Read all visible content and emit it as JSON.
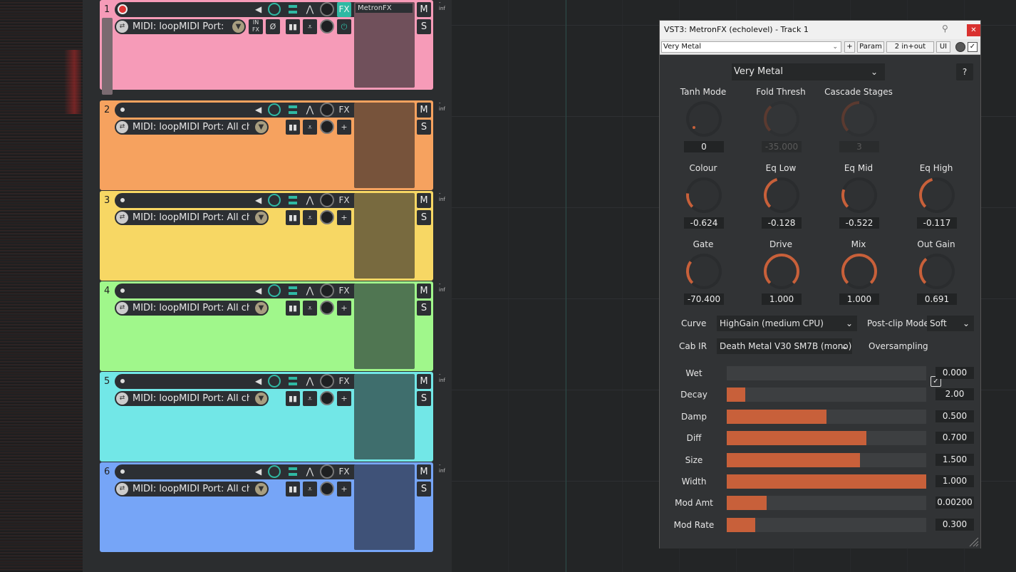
{
  "tracks": [
    {
      "num": "1",
      "input": "MIDI: loopMIDI Port: Al",
      "plugin": "MetronFX",
      "color": "#f69bb8",
      "fx_color": "#70505b",
      "armed": true,
      "fx_active": true
    },
    {
      "num": "2",
      "input": "MIDI: loopMIDI Port: All channe",
      "plugin": "",
      "color": "#f6a25f",
      "fx_color": "#77533b",
      "armed": false,
      "fx_active": false
    },
    {
      "num": "3",
      "input": "MIDI: loopMIDI Port: All channe",
      "plugin": "",
      "color": "#f7d764",
      "fx_color": "#786a3f",
      "armed": false,
      "fx_active": false
    },
    {
      "num": "4",
      "input": "MIDI: loopMIDI Port: All channe",
      "plugin": "",
      "color": "#a0f78b",
      "fx_color": "#507652",
      "armed": false,
      "fx_active": false
    },
    {
      "num": "5",
      "input": "MIDI: loopMIDI Port: All channe",
      "plugin": "",
      "color": "#72e7e7",
      "fx_color": "#3f6e6d",
      "armed": false,
      "fx_active": false
    },
    {
      "num": "6",
      "input": "MIDI: loopMIDI Port: All channe",
      "plugin": "",
      "color": "#76a5f7",
      "fx_color": "#3f5278",
      "armed": false,
      "fx_active": false
    }
  ],
  "track_labels": {
    "fx": "FX",
    "mute": "M",
    "solo": "S",
    "in_fx": "IN\nFX",
    "phase": "Ø",
    "add": "+",
    "power": "⏻",
    "inf": "-inf"
  },
  "plugin": {
    "title": "VST3: MetronFX (echolevel) - Track 1",
    "toolbar_preset": "Very Metal",
    "toolbar_plus": "+",
    "toolbar_param": "Param",
    "toolbar_io": "2 in+out",
    "toolbar_ui": "UI",
    "preset": "Very Metal",
    "help": "?",
    "knobs": [
      {
        "label": "Tanh Mode",
        "value": "0",
        "norm": 0.0,
        "enabled": true
      },
      {
        "label": "Fold Thresh",
        "value": "-35.000",
        "norm": 0.35,
        "enabled": false
      },
      {
        "label": "Cascade Stages",
        "value": "3",
        "norm": 0.5,
        "enabled": false
      },
      {
        "label": "Colour",
        "value": "-0.624",
        "norm": 0.19,
        "enabled": true
      },
      {
        "label": "Eq Low",
        "value": "-0.128",
        "norm": 0.44,
        "enabled": true
      },
      {
        "label": "Eq Mid",
        "value": "-0.522",
        "norm": 0.24,
        "enabled": true
      },
      {
        "label": "Eq High",
        "value": "-0.117",
        "norm": 0.44,
        "enabled": true
      },
      {
        "label": "Gate",
        "value": "-70.400",
        "norm": 0.3,
        "enabled": true
      },
      {
        "label": "Drive",
        "value": "1.000",
        "norm": 1.0,
        "enabled": true
      },
      {
        "label": "Mix",
        "value": "1.000",
        "norm": 1.0,
        "enabled": true
      },
      {
        "label": "Out Gain",
        "value": "0.691",
        "norm": 0.35,
        "enabled": true
      }
    ],
    "curve_label": "Curve",
    "curve_value": "HighGain (medium CPU)",
    "postclip_label": "Post-clip Mode",
    "postclip_value": "Soft",
    "cabir_label": "Cab IR",
    "cabir_value": "Death Metal V30 SM7B (mono)",
    "oversampling_label": "Oversampling",
    "oversampling_checked": "✓",
    "sliders": [
      {
        "label": "Wet",
        "value": "0.000",
        "norm": 0.0
      },
      {
        "label": "Decay",
        "value": "2.00",
        "norm": 0.093
      },
      {
        "label": "Damp",
        "value": "0.500",
        "norm": 0.5
      },
      {
        "label": "Diff",
        "value": "0.700",
        "norm": 0.7
      },
      {
        "label": "Size",
        "value": "1.500",
        "norm": 0.667
      },
      {
        "label": "Width",
        "value": "1.000",
        "norm": 1.0
      },
      {
        "label": "Mod Amt",
        "value": "0.00200",
        "norm": 0.2
      },
      {
        "label": "Mod Rate",
        "value": "0.300",
        "norm": 0.143
      }
    ],
    "accent": "#c8603a"
  }
}
